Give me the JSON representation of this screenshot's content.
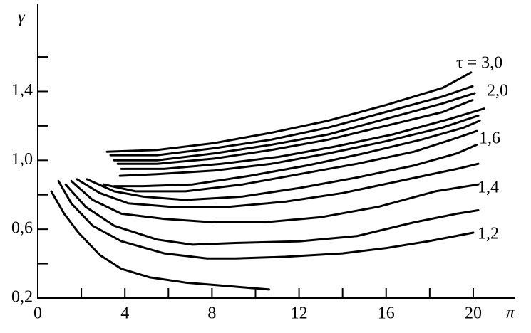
{
  "chart_data": {
    "type": "line",
    "x_label": "π",
    "y_label": "γ",
    "xlim": [
      0,
      21.9
    ],
    "ylim": [
      0.2,
      1.91
    ],
    "xticks": [
      0,
      4,
      8,
      12,
      16,
      20
    ],
    "xminorticks": [
      2,
      6,
      10,
      14,
      18
    ],
    "yticks": [
      {
        "value": 0.2,
        "label": "0,2"
      },
      {
        "value": 0.6,
        "label": "0,6"
      },
      {
        "value": 1.0,
        "label": "1,0"
      },
      {
        "value": 1.4,
        "label": "1,4"
      }
    ],
    "yminorticks": [
      0.4,
      0.8,
      1.2,
      1.6
    ],
    "color": "#000000",
    "annotations": [
      "τ = 3,0",
      "2,0",
      "1,6",
      "1,4",
      "1,2"
    ],
    "series": [
      {
        "x": [
          0.62,
          1.21,
          1.87,
          2.85,
          3.84,
          5.15,
          6.79,
          8.75,
          10.62
        ],
        "values": [
          0.82,
          0.69,
          0.58,
          0.45,
          0.37,
          0.32,
          0.29,
          0.27,
          0.25
        ]
      },
      {
        "x": [
          0.95,
          1.54,
          2.52,
          3.84,
          5.8,
          7.77,
          9.08,
          11.38,
          14.0,
          15.97,
          17.93,
          20.0
        ],
        "values": [
          0.88,
          0.75,
          0.62,
          0.53,
          0.46,
          0.43,
          0.43,
          0.44,
          0.46,
          0.49,
          0.53,
          0.58
        ]
      },
      {
        "x": [
          1.28,
          2.2,
          3.51,
          5.48,
          7.11,
          9.08,
          12.03,
          14.66,
          17.28,
          19.25,
          20.23
        ],
        "values": [
          0.86,
          0.73,
          0.62,
          0.54,
          0.51,
          0.52,
          0.53,
          0.56,
          0.64,
          0.69,
          0.71
        ]
      },
      {
        "x": [
          1.54,
          2.52,
          3.84,
          5.8,
          8.1,
          10.39,
          13.02,
          15.64,
          18.26,
          20.23
        ],
        "values": [
          0.88,
          0.77,
          0.69,
          0.66,
          0.64,
          0.64,
          0.67,
          0.73,
          0.82,
          0.86
        ]
      },
      {
        "x": [
          1.8,
          2.85,
          4.16,
          6.13,
          8.75,
          11.38,
          14.0,
          16.62,
          19.25,
          20.23
        ],
        "values": [
          0.89,
          0.81,
          0.75,
          0.73,
          0.73,
          0.76,
          0.81,
          0.88,
          0.95,
          0.98
        ]
      },
      {
        "x": [
          2.26,
          3.51,
          4.82,
          6.79,
          9.41,
          12.03,
          14.66,
          17.28,
          19.25,
          20.16
        ],
        "values": [
          0.89,
          0.82,
          0.79,
          0.77,
          0.79,
          0.84,
          0.9,
          0.97,
          1.04,
          1.09
        ]
      },
      {
        "x": [
          3.02,
          4.49,
          6.79,
          9.41,
          12.03,
          14.66,
          17.28,
          19.25,
          20.16
        ],
        "values": [
          0.86,
          0.82,
          0.82,
          0.86,
          0.92,
          0.98,
          1.05,
          1.13,
          1.17
        ]
      },
      {
        "x": [
          3.51,
          4.82,
          7.11,
          9.74,
          12.36,
          14.98,
          17.61,
          19.57,
          20.3
        ],
        "values": [
          0.85,
          0.85,
          0.86,
          0.91,
          0.97,
          1.04,
          1.12,
          1.19,
          1.23
        ]
      },
      {
        "x": [
          3.77,
          5.48,
          8.1,
          10.72,
          13.34,
          15.97,
          18.59,
          20.23
        ],
        "values": [
          0.91,
          0.92,
          0.94,
          0.98,
          1.04,
          1.11,
          1.19,
          1.26
        ]
      },
      {
        "x": [
          3.84,
          5.8,
          8.43,
          11.05,
          13.67,
          16.3,
          18.92,
          20.49
        ],
        "values": [
          0.95,
          0.95,
          0.98,
          1.02,
          1.08,
          1.15,
          1.24,
          1.3
        ]
      },
      {
        "x": [
          3.67,
          5.48,
          8.1,
          10.72,
          13.34,
          15.97,
          18.59,
          19.97
        ],
        "values": [
          0.98,
          0.98,
          1.01,
          1.06,
          1.12,
          1.2,
          1.28,
          1.35
        ]
      },
      {
        "x": [
          3.51,
          5.48,
          8.1,
          10.72,
          13.34,
          15.97,
          18.59,
          20.07
        ],
        "values": [
          1.0,
          1.0,
          1.04,
          1.09,
          1.15,
          1.24,
          1.33,
          1.39
        ]
      },
      {
        "x": [
          3.34,
          5.48,
          8.1,
          10.72,
          13.34,
          15.97,
          18.59,
          19.97
        ],
        "values": [
          1.03,
          1.03,
          1.07,
          1.12,
          1.19,
          1.28,
          1.37,
          1.43
        ]
      },
      {
        "x": [
          3.18,
          5.48,
          8.1,
          10.72,
          13.34,
          15.97,
          18.59,
          19.9
        ],
        "values": [
          1.05,
          1.06,
          1.1,
          1.16,
          1.23,
          1.32,
          1.42,
          1.51
        ]
      }
    ]
  }
}
